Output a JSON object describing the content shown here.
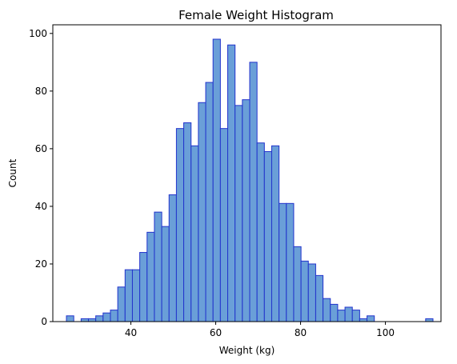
{
  "chart_data": {
    "type": "bar",
    "title": "Female Weight Histogram",
    "xlabel": "Weight (kg)",
    "ylabel": "Count",
    "xlim": [
      21.6,
      113.1
    ],
    "ylim": [
      0,
      103
    ],
    "xticks": [
      40,
      60,
      80,
      100
    ],
    "yticks": [
      0,
      20,
      40,
      60,
      80,
      100
    ],
    "bin_start": 24.81,
    "bin_width": 1.728,
    "counts": [
      2,
      0,
      1,
      1,
      2,
      3,
      4,
      12,
      18,
      18,
      24,
      31,
      38,
      33,
      44,
      67,
      69,
      61,
      76,
      83,
      98,
      67,
      96,
      75,
      77,
      90,
      62,
      59,
      61,
      41,
      41,
      26,
      21,
      20,
      16,
      8,
      6,
      4,
      5,
      4,
      1,
      2,
      0,
      0,
      0,
      0,
      0,
      0,
      0,
      1
    ],
    "grid": false,
    "colors": {
      "bar_fill": "#6a9fd8",
      "bar_edge": "#2233cc"
    }
  }
}
